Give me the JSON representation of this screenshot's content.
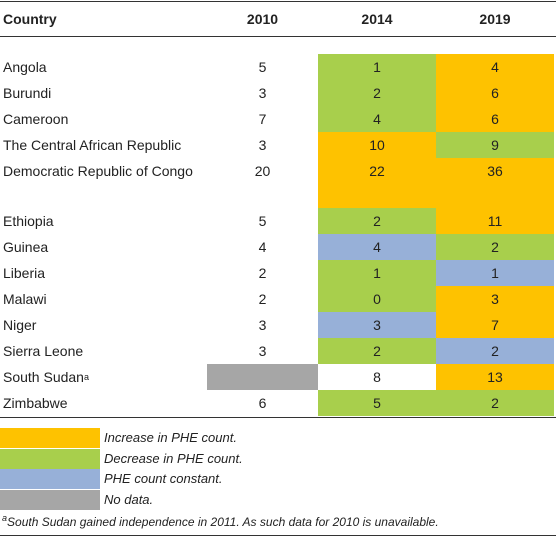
{
  "table": {
    "header": [
      "Country",
      "2010",
      "2014",
      "2019"
    ],
    "rows": [
      [
        {
          "text": "Angola"
        },
        {
          "text": "5"
        },
        {
          "text": "1",
          "color": "#a8cf4c"
        },
        {
          "text": "4",
          "color": "#fec200"
        }
      ],
      [
        {
          "text": "Burundi"
        },
        {
          "text": "3"
        },
        {
          "text": "2",
          "color": "#a8cf4c"
        },
        {
          "text": "6",
          "color": "#fec200"
        }
      ],
      [
        {
          "text": "Cameroon"
        },
        {
          "text": "7"
        },
        {
          "text": "4",
          "color": "#a8cf4c"
        },
        {
          "text": "6",
          "color": "#fec200"
        }
      ],
      [
        {
          "text": "The Central African Republic"
        },
        {
          "text": "3"
        },
        {
          "text": "10",
          "color": "#fec200"
        },
        {
          "text": "9",
          "color": "#a8cf4c"
        }
      ],
      [
        {
          "text": "Democratic Republic of Congo"
        },
        {
          "text": "20"
        },
        {
          "text": "22",
          "color": "#fec200"
        },
        {
          "text": "36",
          "color": "#fec200"
        }
      ],
      [
        {
          "text": "Ethiopia"
        },
        {
          "text": "5"
        },
        {
          "text": "2",
          "color": "#a8cf4c"
        },
        {
          "text": "11",
          "color": "#fec200"
        }
      ],
      [
        {
          "text": "Guinea"
        },
        {
          "text": "4"
        },
        {
          "text": "4",
          "color": "#97b0d8"
        },
        {
          "text": "2",
          "color": "#a8cf4c"
        }
      ],
      [
        {
          "text": "Liberia"
        },
        {
          "text": "2"
        },
        {
          "text": "1",
          "color": "#a8cf4c"
        },
        {
          "text": "1",
          "color": "#97b0d8"
        }
      ],
      [
        {
          "text": "Malawi"
        },
        {
          "text": "2"
        },
        {
          "text": "0",
          "color": "#a8cf4c"
        },
        {
          "text": "3",
          "color": "#fec200"
        }
      ],
      [
        {
          "text": "Niger"
        },
        {
          "text": "3"
        },
        {
          "text": "3",
          "color": "#97b0d8"
        },
        {
          "text": "7",
          "color": "#fec200"
        }
      ],
      [
        {
          "text": "Sierra Leone"
        },
        {
          "text": "3"
        },
        {
          "text": "2",
          "color": "#a8cf4c"
        },
        {
          "text": "2",
          "color": "#97b0d8"
        }
      ],
      [
        {
          "text": "South Sudan",
          "sup": "a"
        },
        {
          "color": "#a6a6a6"
        },
        {
          "text": "8"
        },
        {
          "text": "13",
          "color": "#fec200"
        }
      ],
      [
        {
          "text": "Zimbabwe"
        },
        {
          "text": "6"
        },
        {
          "text": "5",
          "color": "#a8cf4c"
        },
        {
          "text": "2",
          "color": "#a8cf4c"
        }
      ]
    ]
  },
  "legend": [
    {
      "label": "Increase in PHE count.",
      "color": "#fec200"
    },
    {
      "label": "Decrease in PHE count.",
      "color": "#a8cf4c"
    },
    {
      "label": "PHE count constant.",
      "color": "#97b0d8"
    },
    {
      "label": "No data.",
      "color": "#a6a6a6"
    }
  ],
  "footnote": {
    "sup": "a",
    "text": "South Sudan gained independence in 2011. As such data for 2010 is unavailable."
  }
}
